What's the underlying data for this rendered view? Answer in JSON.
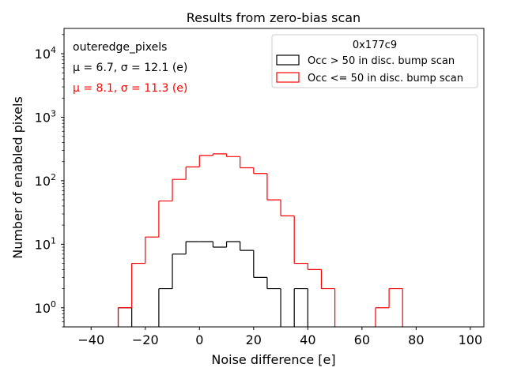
{
  "chart_data": {
    "type": "histogram",
    "title": "Results from zero-bias scan",
    "xlabel": "Noise difference [e]",
    "ylabel": "Number of enabled pixels",
    "xlim": [
      -50,
      105
    ],
    "ylim": [
      0.5,
      25000
    ],
    "yscale": "log",
    "bin_width": 5,
    "x_ticks": [
      -40,
      -20,
      0,
      20,
      40,
      60,
      80,
      100
    ],
    "x_tick_labels": [
      "−40",
      "−20",
      "0",
      "20",
      "40",
      "60",
      "80",
      "100"
    ],
    "y_ticks": [
      1,
      10,
      100,
      1000,
      10000
    ],
    "y_tick_bases": [
      "10",
      "10",
      "10",
      "10",
      "10"
    ],
    "y_tick_exponents": [
      "0",
      "1",
      "2",
      "3",
      "4"
    ],
    "annotations": {
      "group": "outeredge_pixels",
      "stats_black": "μ = 6.7, σ = 12.1 (e)",
      "stats_red": "μ = 8.1, σ = 11.3 (e)"
    },
    "legend": {
      "title": "0x177c9",
      "placement": "top-right"
    },
    "series": [
      {
        "name": "Occ > 50 in disc. bump scan",
        "color": "#000000",
        "bins": [
          {
            "lo": -30,
            "hi": -25,
            "count": 1
          },
          {
            "lo": -15,
            "hi": -10,
            "count": 2
          },
          {
            "lo": -10,
            "hi": -5,
            "count": 7
          },
          {
            "lo": -5,
            "hi": 0,
            "count": 11
          },
          {
            "lo": 0,
            "hi": 5,
            "count": 11
          },
          {
            "lo": 5,
            "hi": 10,
            "count": 9
          },
          {
            "lo": 10,
            "hi": 15,
            "count": 11
          },
          {
            "lo": 15,
            "hi": 20,
            "count": 8
          },
          {
            "lo": 20,
            "hi": 25,
            "count": 3
          },
          {
            "lo": 25,
            "hi": 30,
            "count": 2
          },
          {
            "lo": 35,
            "hi": 40,
            "count": 2
          }
        ]
      },
      {
        "name": "Occ <= 50 in disc. bump scan",
        "color": "#ff0000",
        "bins": [
          {
            "lo": -30,
            "hi": -25,
            "count": 1
          },
          {
            "lo": -25,
            "hi": -20,
            "count": 5
          },
          {
            "lo": -20,
            "hi": -15,
            "count": 13
          },
          {
            "lo": -15,
            "hi": -10,
            "count": 48
          },
          {
            "lo": -10,
            "hi": -5,
            "count": 105
          },
          {
            "lo": -5,
            "hi": 0,
            "count": 165
          },
          {
            "lo": 0,
            "hi": 5,
            "count": 250
          },
          {
            "lo": 5,
            "hi": 10,
            "count": 265
          },
          {
            "lo": 10,
            "hi": 15,
            "count": 240
          },
          {
            "lo": 15,
            "hi": 20,
            "count": 160
          },
          {
            "lo": 20,
            "hi": 25,
            "count": 130
          },
          {
            "lo": 25,
            "hi": 30,
            "count": 50
          },
          {
            "lo": 30,
            "hi": 35,
            "count": 28
          },
          {
            "lo": 35,
            "hi": 40,
            "count": 5
          },
          {
            "lo": 40,
            "hi": 45,
            "count": 4
          },
          {
            "lo": 45,
            "hi": 50,
            "count": 2
          },
          {
            "lo": 65,
            "hi": 70,
            "count": 1
          },
          {
            "lo": 70,
            "hi": 75,
            "count": 2
          }
        ]
      }
    ]
  }
}
